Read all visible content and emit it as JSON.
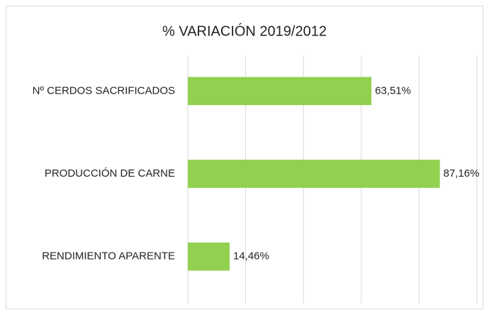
{
  "chart_data": {
    "type": "bar",
    "orientation": "horizontal",
    "title": "% VARIACIÓN 2019/2012",
    "categories": [
      "Nº CERDOS SACRIFICADOS",
      "PRODUCCIÓN DE CARNE",
      "RENDIMIENTO APARENTE"
    ],
    "values": [
      63.51,
      87.16,
      14.46
    ],
    "value_labels": [
      "63,51%",
      "87,16%",
      "14,46%"
    ],
    "color": "#92d050",
    "xlim": [
      0,
      100
    ],
    "xticks": [
      0,
      20,
      40,
      60,
      80,
      100
    ],
    "grid": true,
    "tick_labels": false
  }
}
